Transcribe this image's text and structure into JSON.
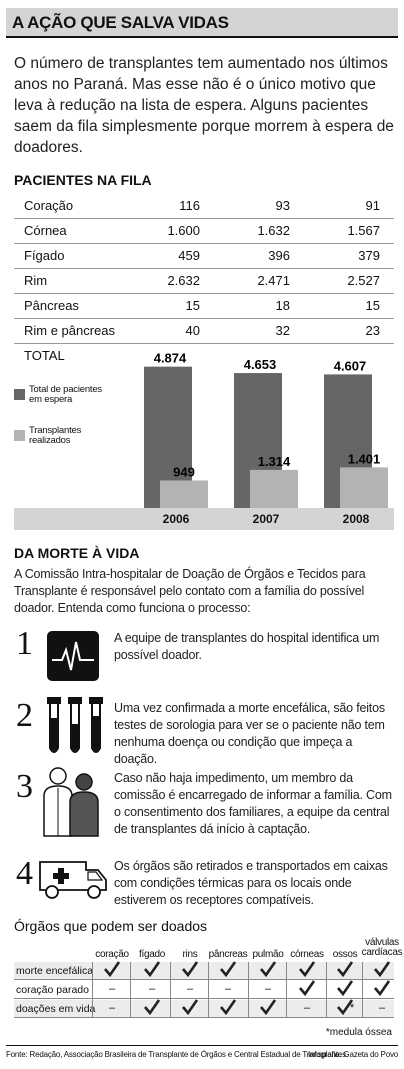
{
  "title": "A AÇÃO QUE SALVA VIDAS",
  "intro": "O número de transplantes tem aumentado nos últimos anos no Paraná. Mas esse não é o único motivo que leva à redução na lista de espera. Alguns pacientes saem da fila simplesmente porque morrem à espera de doadores.",
  "pacientes": {
    "title": "PACIENTES NA FILA",
    "rows": [
      {
        "label": "Coração",
        "v": [
          "116",
          "93",
          "91"
        ]
      },
      {
        "label": "Córnea",
        "v": [
          "1.600",
          "1.632",
          "1.567"
        ]
      },
      {
        "label": "Fígado",
        "v": [
          "459",
          "396",
          "379"
        ]
      },
      {
        "label": "Rim",
        "v": [
          "2.632",
          "2.471",
          "2.527"
        ]
      },
      {
        "label": "Pâncreas",
        "v": [
          "15",
          "18",
          "15"
        ]
      },
      {
        "label": "Rim e pâncreas",
        "v": [
          "40",
          "32",
          "23"
        ]
      }
    ],
    "total_label": "TOTAL"
  },
  "chart_data": {
    "type": "bar",
    "categories": [
      "2006",
      "2007",
      "2008"
    ],
    "series": [
      {
        "name": "Total de pacientes em espera",
        "values": [
          4874,
          4653,
          4607
        ],
        "color": "#666666"
      },
      {
        "name": "Transplantes realizados",
        "values": [
          949,
          1314,
          1401
        ],
        "color": "#b3b3b3"
      }
    ],
    "value_labels": [
      [
        "4.874",
        "4.653",
        "4.607"
      ],
      [
        "949",
        "1.314",
        "1.401"
      ]
    ],
    "ylim": [
      0,
      5000
    ]
  },
  "legend": {
    "total": "Total de pacientes em espera",
    "transplantes": "Transplantes realizados"
  },
  "morte": {
    "title": "DA MORTE À VIDA",
    "intro": "A Comissão Intra-hospitalar de Doação de Órgãos e Tecidos para Transplante é responsável pelo contato com a família do possível doador. Entenda como funciona o processo:",
    "steps": [
      {
        "num": "1",
        "icon": "heart-monitor-icon",
        "text": "A equipe de transplantes do hospital identifica um possível doador."
      },
      {
        "num": "2",
        "icon": "test-tubes-icon",
        "text": "Uma vez confirmada a morte encefálica, são feitos testes de sorologia para ver se o paciente não tem nenhuma doença ou condição que impeça a doação."
      },
      {
        "num": "3",
        "icon": "doctors-icon",
        "text": "Caso não haja impedimento, um membro da comissão é encarregado de informar a família. Com o consentimento dos familiares, a equipe da central de transplantes dá início à captação."
      },
      {
        "num": "4",
        "icon": "ambulance-icon",
        "text": "Os órgãos são retirados e transportados em caixas com condições térmicas para os locais onde estiverem os receptores compatíveis."
      }
    ]
  },
  "orgaos": {
    "title": "Órgãos que podem ser doados",
    "columns": [
      "coração",
      "fígado",
      "rins",
      "pâncreas",
      "pulmão",
      "córneas",
      "ossos",
      "válvulas cardíacas"
    ],
    "rows": [
      {
        "label": "morte encefálica",
        "cells": [
          "check",
          "check",
          "check",
          "check",
          "check",
          "check",
          "check",
          "check"
        ]
      },
      {
        "label": "coração parado",
        "cells": [
          "–",
          "–",
          "–",
          "–",
          "–",
          "check",
          "check",
          "check"
        ]
      },
      {
        "label": "doações em vida",
        "cells": [
          "–",
          "check",
          "check",
          "check",
          "check",
          "–",
          "check*",
          "–"
        ]
      }
    ],
    "footnote": "*medula óssea"
  },
  "footer": {
    "source": "Fonte: Redação, Associação Brasileira de Transplante de Órgãos e Central Estadual de Transplantes.",
    "credit": "Infografia: Gazeta do Povo"
  }
}
